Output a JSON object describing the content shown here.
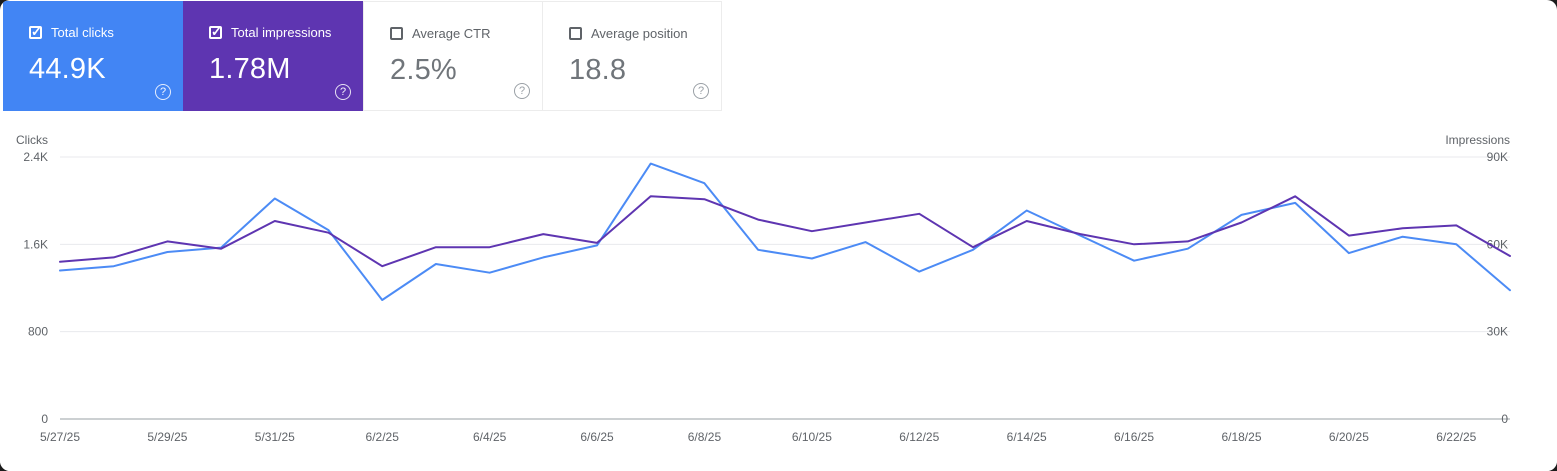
{
  "colors": {
    "clicks_blue": "#4285f4",
    "clicks_line": "#4c8bf5",
    "impressions_purple": "#5e35b1",
    "impressions_line": "#5e35b1",
    "label_gray": "#5f6368",
    "value_gray": "#70757a",
    "grid": "#e8eaed",
    "axis_baseline": "#9aa0a6"
  },
  "metric_cards": [
    {
      "label": "Total clicks",
      "value": "44.9K",
      "checked": true,
      "selected": true,
      "bg": "#4285f4"
    },
    {
      "label": "Total impressions",
      "value": "1.78M",
      "checked": true,
      "selected": true,
      "bg": "#5e35b1"
    },
    {
      "label": "Average CTR",
      "value": "2.5%",
      "checked": false,
      "selected": false,
      "bg": "#ffffff"
    },
    {
      "label": "Average position",
      "value": "18.8",
      "checked": false,
      "selected": false,
      "bg": "#ffffff"
    }
  ],
  "chart_data": {
    "type": "line",
    "x": [
      "5/27/25",
      "5/28/25",
      "5/29/25",
      "5/30/25",
      "5/31/25",
      "6/1/25",
      "6/2/25",
      "6/3/25",
      "6/4/25",
      "6/5/25",
      "6/6/25",
      "6/7/25",
      "6/8/25",
      "6/9/25",
      "6/10/25",
      "6/11/25",
      "6/12/25",
      "6/13/25",
      "6/14/25",
      "6/15/25",
      "6/16/25",
      "6/17/25",
      "6/18/25",
      "6/19/25",
      "6/20/25",
      "6/21/25",
      "6/22/25",
      "6/23/25"
    ],
    "x_tick_labels": [
      "5/27/25",
      "5/29/25",
      "5/31/25",
      "6/2/25",
      "6/4/25",
      "6/6/25",
      "6/8/25",
      "6/10/25",
      "6/12/25",
      "6/14/25",
      "6/16/25",
      "6/18/25",
      "6/20/25",
      "6/22/25"
    ],
    "x_tick_every": 2,
    "left_axis": {
      "title": "Clicks",
      "max": 2400,
      "ticks": [
        0,
        800,
        1600,
        2400
      ],
      "tick_labels": [
        "0",
        "800",
        "1.6K",
        "2.4K"
      ]
    },
    "right_axis": {
      "title": "Impressions",
      "max": 90000,
      "ticks": [
        0,
        30000,
        60000,
        90000
      ],
      "tick_labels": [
        "0",
        "30K",
        "60K",
        "90K"
      ]
    },
    "series": [
      {
        "name": "Total clicks",
        "axis": "left",
        "color": "#4c8bf5",
        "values": [
          1360,
          1400,
          1530,
          1570,
          2020,
          1730,
          1090,
          1420,
          1340,
          1480,
          1590,
          2340,
          2160,
          1550,
          1470,
          1620,
          1350,
          1550,
          1910,
          1680,
          1450,
          1560,
          1870,
          1980,
          1520,
          1670,
          1600,
          1180
        ]
      },
      {
        "name": "Total impressions",
        "axis": "right",
        "color": "#5e35b1",
        "values": [
          54000,
          55500,
          61000,
          58500,
          68000,
          64000,
          52500,
          59000,
          59000,
          63500,
          60500,
          76500,
          75500,
          68500,
          64500,
          67500,
          70500,
          59000,
          68000,
          63500,
          60000,
          61000,
          67500,
          76500,
          63000,
          65500,
          66500,
          56000
        ]
      }
    ]
  }
}
